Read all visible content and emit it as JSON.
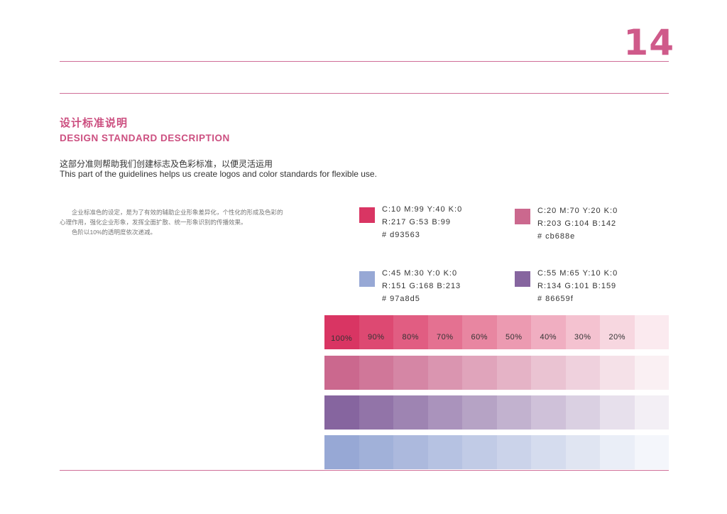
{
  "page_number": "14",
  "heading": {
    "title_cn": "设计标准说明",
    "title_en": "DESIGN STANDARD DESCRIPTION"
  },
  "intro": {
    "cn": "这部分准则帮助我们创建标志及色彩标准，以便灵活运用",
    "en": "This part of the guidelines helps us create logos and color standards for flexible use."
  },
  "body": {
    "paragraph1": "企业标准色的设定，是为了有效的辅助企业形象差异化，个性化的形成及色彩的心理作用，强化企业形象，发挥全面扩散、统一形象识别的传播效果。",
    "paragraph2": "色阶以10%的透明度依次递减。"
  },
  "swatches": [
    {
      "color": "#d93563",
      "cmyk": "C:10 M:99 Y:40 K:0",
      "rgb": "R:217 G:53 B:99",
      "hex": "# d93563"
    },
    {
      "color": "#cb688e",
      "cmyk": "C:20 M:70 Y:20 K:0",
      "rgb": "R:203 G:104 B:142",
      "hex": "# cb688e"
    },
    {
      "color": "#97a8d5",
      "cmyk": "C:45 M:30 Y:0 K:0",
      "rgb": "R:151 G:168 B:213",
      "hex": "# 97a8d5"
    },
    {
      "color": "#86659f",
      "cmyk": "C:55 M:65 Y:10 K:0",
      "rgb": "R:134 G:101 B:159",
      "hex": "# 86659f"
    }
  ],
  "tint_grid": {
    "labels": [
      "100%",
      "90%",
      "80%",
      "70%",
      "60%",
      "50%",
      "40%",
      "30%",
      "20%",
      ""
    ],
    "opacities": [
      1.0,
      0.9,
      0.8,
      0.7,
      0.6,
      0.5,
      0.4,
      0.3,
      0.2,
      0.1
    ],
    "row_colors": [
      "#d93563",
      "#cb688e",
      "#86659f",
      "#97a8d5"
    ]
  }
}
